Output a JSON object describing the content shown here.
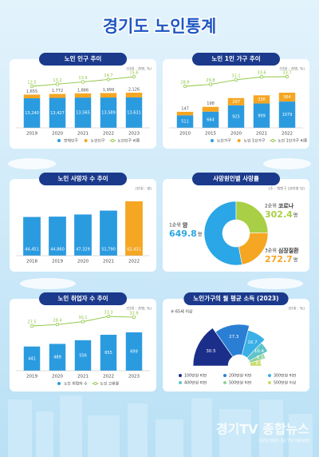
{
  "title": "경기도 노인통계",
  "watermark": {
    "name": "경기TV 종합뉴스",
    "sub": "GYEONG GI TV NEWS"
  },
  "chart_data": [
    {
      "type": "bar_line",
      "title": "노인 인구 추이",
      "unit_note": "(단위 : 천명, %)",
      "categories": [
        "2019",
        "2020",
        "2021",
        "2022",
        "2023"
      ],
      "series": [
        {
          "name": "전체인구",
          "color": "#2b9be0",
          "values": [
            13240,
            13427,
            13565,
            13589,
            13631
          ],
          "value_labels": [
            "13,240",
            "13,427",
            "13,565",
            "13,589",
            "13,631"
          ]
        },
        {
          "name": "노인인구",
          "color": "#f5a623",
          "values": [
            1655,
            1772,
            1886,
            1999,
            2126
          ],
          "value_labels": [
            "1,655",
            "1,772",
            "1,886",
            "1,999",
            "2,126"
          ]
        },
        {
          "name": "노인인구 비중",
          "type": "line",
          "color": "#8cc63f",
          "values": [
            12.5,
            13.2,
            13.9,
            14.7,
            15.6
          ]
        }
      ]
    },
    {
      "type": "bar_line",
      "title": "노인 1인 가구 추이",
      "unit_note": "(단위 : 천명, %)",
      "categories": [
        "2010",
        "2015",
        "2020",
        "2021",
        "2022"
      ],
      "series": [
        {
          "name": "노인가구",
          "color": "#2b9be0",
          "values": [
            511,
            664,
            925,
            999,
            1079
          ]
        },
        {
          "name": "노인 1인가구",
          "color": "#f5a623",
          "values": [
            147,
            198,
            297,
            336,
            364
          ]
        },
        {
          "name": "노인 1인가구 비중",
          "type": "line",
          "color": "#8cc63f",
          "values": [
            28.8,
            29.8,
            32.1,
            33.6,
            33.7
          ]
        }
      ]
    },
    {
      "type": "bar",
      "title": "노인 사망자 수 추이",
      "unit_note": "(단위 : 명)",
      "categories": [
        "2018",
        "2019",
        "2020",
        "2021",
        "2022"
      ],
      "values": [
        44451,
        44860,
        47329,
        51790,
        62431
      ],
      "value_labels": [
        "44,451",
        "44,860",
        "47,329",
        "51,790",
        "62,431"
      ],
      "colors": [
        "#2b9be0",
        "#2b9be0",
        "#2b9be0",
        "#2b9be0",
        "#f5a623"
      ]
    },
    {
      "type": "donut",
      "title": "사망원인별 사망률",
      "unit_note": "(주 : 계엔구 10만명 당)",
      "categories": [
        "암",
        "코로나",
        "심장질환"
      ],
      "ranks": [
        "1순위",
        "2순위",
        "3순위"
      ],
      "unit": "명",
      "values": [
        649.8,
        302.4,
        272.7
      ],
      "colors": [
        "#2ba6e6",
        "#a8cf45",
        "#f5a623"
      ]
    },
    {
      "type": "bar_line",
      "title": "노인 취업자 수 추이",
      "unit_note": "(단위 : 천명, %)",
      "categories": [
        "2019",
        "2020",
        "2021",
        "2022",
        "2023"
      ],
      "series": [
        {
          "name": "노인 취업자 수",
          "color": "#2b9be0",
          "values": [
            441,
            489,
            556,
            655,
            699
          ]
        },
        {
          "name": "노인 고용률",
          "type": "line",
          "color": "#8cc63f",
          "values": [
            27.5,
            28.4,
            30.1,
            33.3,
            32.8
          ]
        }
      ]
    },
    {
      "type": "fan",
      "title": "노인가구의 월 평균 소득 (2023)",
      "unit_note": "(단위 : %)",
      "note": "※ 65세 이상",
      "categories": [
        "100만원 미만",
        "200만원 미만",
        "300만원 미만",
        "400만원 미만",
        "500만원 미만",
        "500만원 이상"
      ],
      "values": [
        30.5,
        27.3,
        16.7,
        10.4,
        6.3,
        8.8
      ],
      "colors": [
        "#1b2f8a",
        "#2a7fd4",
        "#3ab0e6",
        "#5fc4c9",
        "#8fd19e",
        "#c8dc6a"
      ]
    }
  ]
}
